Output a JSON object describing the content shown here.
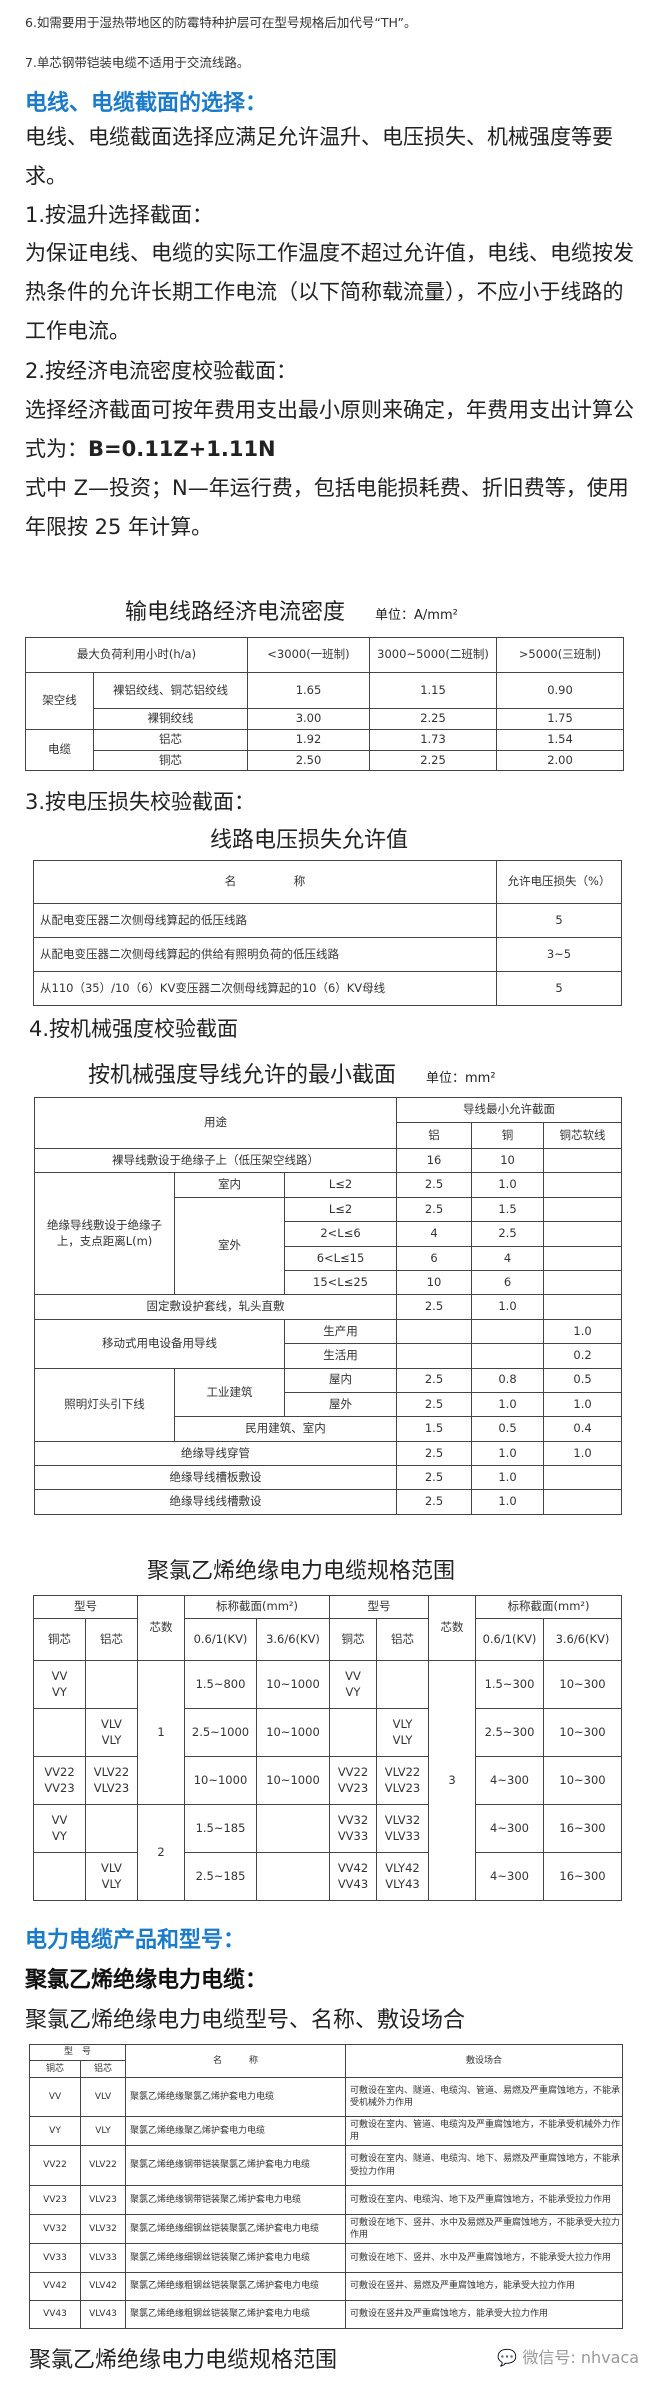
{
  "notes": [
    "6.如需要用于湿热带地区的防霉特种护层可在型号规格后加代号“TH”。",
    "7.单芯钢带铠装电缆不适用于交流线路。"
  ],
  "heading1": "电线、电缆截面的选择：",
  "para1": "电线、电缆截面选择应满足允许温升、电压损失、机械强度等要求。",
  "sec1": "1.按温升选择截面：",
  "para2": "为保证电线、电缆的实际工作温度不超过允许值，电线、电缆按发热条件的允许长期工作电流（以下简称载流量），不应小于线路的工作电流。",
  "sec2": "2.按经济电流密度校验截面：",
  "para3a": "选择经济截面可按年费用支出最小原则来确定，年费用支出计算公式为：",
  "formula": "B=0.11Z+1.11N",
  "para3b": "式中 Z—投资；N—年运行费，包括电能损耗费、折旧费等，使用年限按 25 年计算。",
  "table1": {
    "title": "输电线路经济电流密度",
    "unit": "单位：A/mm²",
    "headers": [
      "最大负荷利用小时(h/a)",
      "<3000(一班制)",
      "3000~5000(二班制)",
      ">5000(三班制)"
    ],
    "groups": [
      "架空线",
      "电缆"
    ],
    "rows": [
      [
        "裸铝绞线、铜芯铝绞线",
        "1.65",
        "1.15",
        "0.90"
      ],
      [
        "裸铜绞线",
        "3.00",
        "2.25",
        "1.75"
      ],
      [
        "铝芯",
        "1.92",
        "1.73",
        "1.54"
      ],
      [
        "铜芯",
        "2.50",
        "2.25",
        "2.00"
      ]
    ]
  },
  "sec3": "3.按电压损失校验截面：",
  "table2": {
    "title": "线路电压损失允许值",
    "headers": [
      "名　　　　　称",
      "允许电压损失（%）"
    ],
    "rows": [
      [
        "从配电变压器二次侧母线算起的低压线路",
        "5"
      ],
      [
        "从配电变压器二次侧母线算起的供给有照明负荷的低压线路",
        "3~5"
      ],
      [
        "从110（35）/10（6）KV变压器二次侧母线算起的10（6）KV母线",
        "5"
      ]
    ]
  },
  "sec4": "4.按机械强度校验截面",
  "table3": {
    "title": "按机械强度导线允许的最小截面",
    "unit": "单位：mm²",
    "h_use": "用途",
    "h_min": "导线最小允许截面",
    "h_al": "铝",
    "h_cu": "铜",
    "h_soft": "铜芯软线",
    "bare": [
      "裸导线敷设于绝缘子上（低压架空线路）",
      "16",
      "10",
      ""
    ],
    "ins_label": "绝缘导线敷设于绝缘子上，支点距离L(m)",
    "indoor": "室内",
    "outdoor": "室外",
    "indoor_row": [
      "L≤2",
      "2.5",
      "1.0",
      ""
    ],
    "outdoor_rows": [
      [
        "L≤2",
        "2.5",
        "1.5",
        ""
      ],
      [
        "2<L≤6",
        "4",
        "2.5",
        ""
      ],
      [
        "6<L≤15",
        "6",
        "4",
        ""
      ],
      [
        "15<L≤25",
        "10",
        "6",
        ""
      ]
    ],
    "fixed": [
      "固定敷设护套线，轧头直敷",
      "2.5",
      "1.0",
      ""
    ],
    "mobile_label": "移动式用电设备用导线",
    "mobile_rows": [
      [
        "生产用",
        "",
        "",
        "1.0"
      ],
      [
        "生活用",
        "",
        "",
        "0.2"
      ]
    ],
    "light_label": "照明灯头引下线",
    "industrial": "工业建筑",
    "ind_rows": [
      [
        "屋内",
        "2.5",
        "0.8",
        "0.5"
      ],
      [
        "屋外",
        "2.5",
        "1.0",
        "1.0"
      ]
    ],
    "civil": [
      "民用建筑、室内",
      "1.5",
      "0.5",
      "0.4"
    ],
    "tail": [
      [
        "绝缘导线穿管",
        "2.5",
        "1.0",
        "1.0"
      ],
      [
        "绝缘导线槽板敷设",
        "2.5",
        "1.0",
        ""
      ],
      [
        "绝缘导线线槽敷设",
        "2.5",
        "1.0",
        ""
      ]
    ]
  },
  "table4": {
    "title": "聚氯乙烯绝缘电力电缆规格范围",
    "h_model": "型号",
    "h_cores": "芯数",
    "h_section": "标称截面(mm²)",
    "h_cu": "铜芯",
    "h_al": "铝芯",
    "h_v1": "0.6/1(KV)",
    "h_v2": "3.6/6(KV)",
    "cores_left": [
      "1",
      "2"
    ],
    "cores_right": "3",
    "rows": [
      {
        "cu": "VV\nVY",
        "al": "",
        "a": "1.5~800",
        "b": "10~1000",
        "cu2": "VV\nVY",
        "al2": "",
        "c": "1.5~300",
        "d": "10~300"
      },
      {
        "cu": "",
        "al": "VLV\nVLY",
        "a": "2.5~1000",
        "b": "10~1000",
        "cu2": "",
        "al2": "VLY\nVLY",
        "c": "2.5~300",
        "d": "10~300"
      },
      {
        "cu": "VV22\nVV23",
        "al": "VLV22\nVLV23",
        "a": "10~1000",
        "b": "10~1000",
        "cu2": "VV22\nVV23",
        "al2": "VLV22\nVLV23",
        "c": "4~300",
        "d": "10~300"
      },
      {
        "cu": "VV\nVY",
        "al": "",
        "a": "1.5~185",
        "b": "",
        "cu2": "VV32\nVV33",
        "al2": "VLV32\nVLV33",
        "c": "4~300",
        "d": "16~300"
      },
      {
        "cu": "",
        "al": "VLV\nVLY",
        "a": "2.5~185",
        "b": "",
        "cu2": "VV42\nVV43",
        "al2": "VLY42\nVLY43",
        "c": "4~300",
        "d": "16~300"
      }
    ]
  },
  "heading2": "电力电缆产品和型号：",
  "bold_heading": "聚氯乙烯绝缘电力电缆：",
  "table5": {
    "title": "聚氯乙烯绝缘电力电缆型号、名称、敷设场合",
    "h_model": "型　号",
    "h_cu": "铜芯",
    "h_al": "铝芯",
    "h_name": "名　　　称",
    "h_place": "敷设场合",
    "rows": [
      [
        "VV",
        "VLV",
        "聚氯乙烯绝缘聚氯乙烯护套电力电缆",
        "可敷设在室内、隧道、电缆沟、管道、易燃及严重腐蚀地方，不能承受机械外力作用"
      ],
      [
        "VY",
        "VLY",
        "聚氯乙烯绝缘聚乙烯护套电力电缆",
        "可敷设在室内、管道、电缆沟及严重腐蚀地方，不能承受机械外力作用"
      ],
      [
        "VV22",
        "VLV22",
        "聚氯乙烯绝缘钢带铠装聚氯乙烯护套电力电缆",
        "可敷设在室内、隧道、电缆沟、地下、易燃及严重腐蚀地方，不能承受拉力作用"
      ],
      [
        "VV23",
        "VLV23",
        "聚氯乙烯绝缘钢带铠装聚乙烯护套电力电缆",
        "可敷设在室内、电缆沟、地下及严重腐蚀地方，不能承受拉力作用"
      ],
      [
        "VV32",
        "VLV32",
        "聚氯乙烯绝缘细钢丝铠装聚氯乙烯护套电力电缆",
        "可敷设在地下、竖井、水中及易燃及严重腐蚀地方，不能承受大拉力作用"
      ],
      [
        "VV33",
        "VLV33",
        "聚氯乙烯绝缘细钢丝铠装聚乙烯护套电力电缆",
        "可敷设在地下、竖井、水中及严重腐蚀地方，不能承受大拉力作用"
      ],
      [
        "VV42",
        "VLV42",
        "聚氯乙烯绝缘粗钢丝铠装聚氯乙烯护套电力电缆",
        "可敷设在竖井、易燃及严重腐蚀地方，能承受大拉力作用"
      ],
      [
        "VV43",
        "VLV43",
        "聚氯乙烯绝缘粗钢丝铠装聚乙烯护套电力电缆",
        "可敷设在竖井及严重腐蚀地方，能承受大拉力作用"
      ]
    ]
  },
  "final_title": "聚氯乙烯绝缘电力电缆规格范围",
  "watermark": "微信号: nhvaca",
  "colors": {
    "heading_blue": "#1a7bc9"
  }
}
